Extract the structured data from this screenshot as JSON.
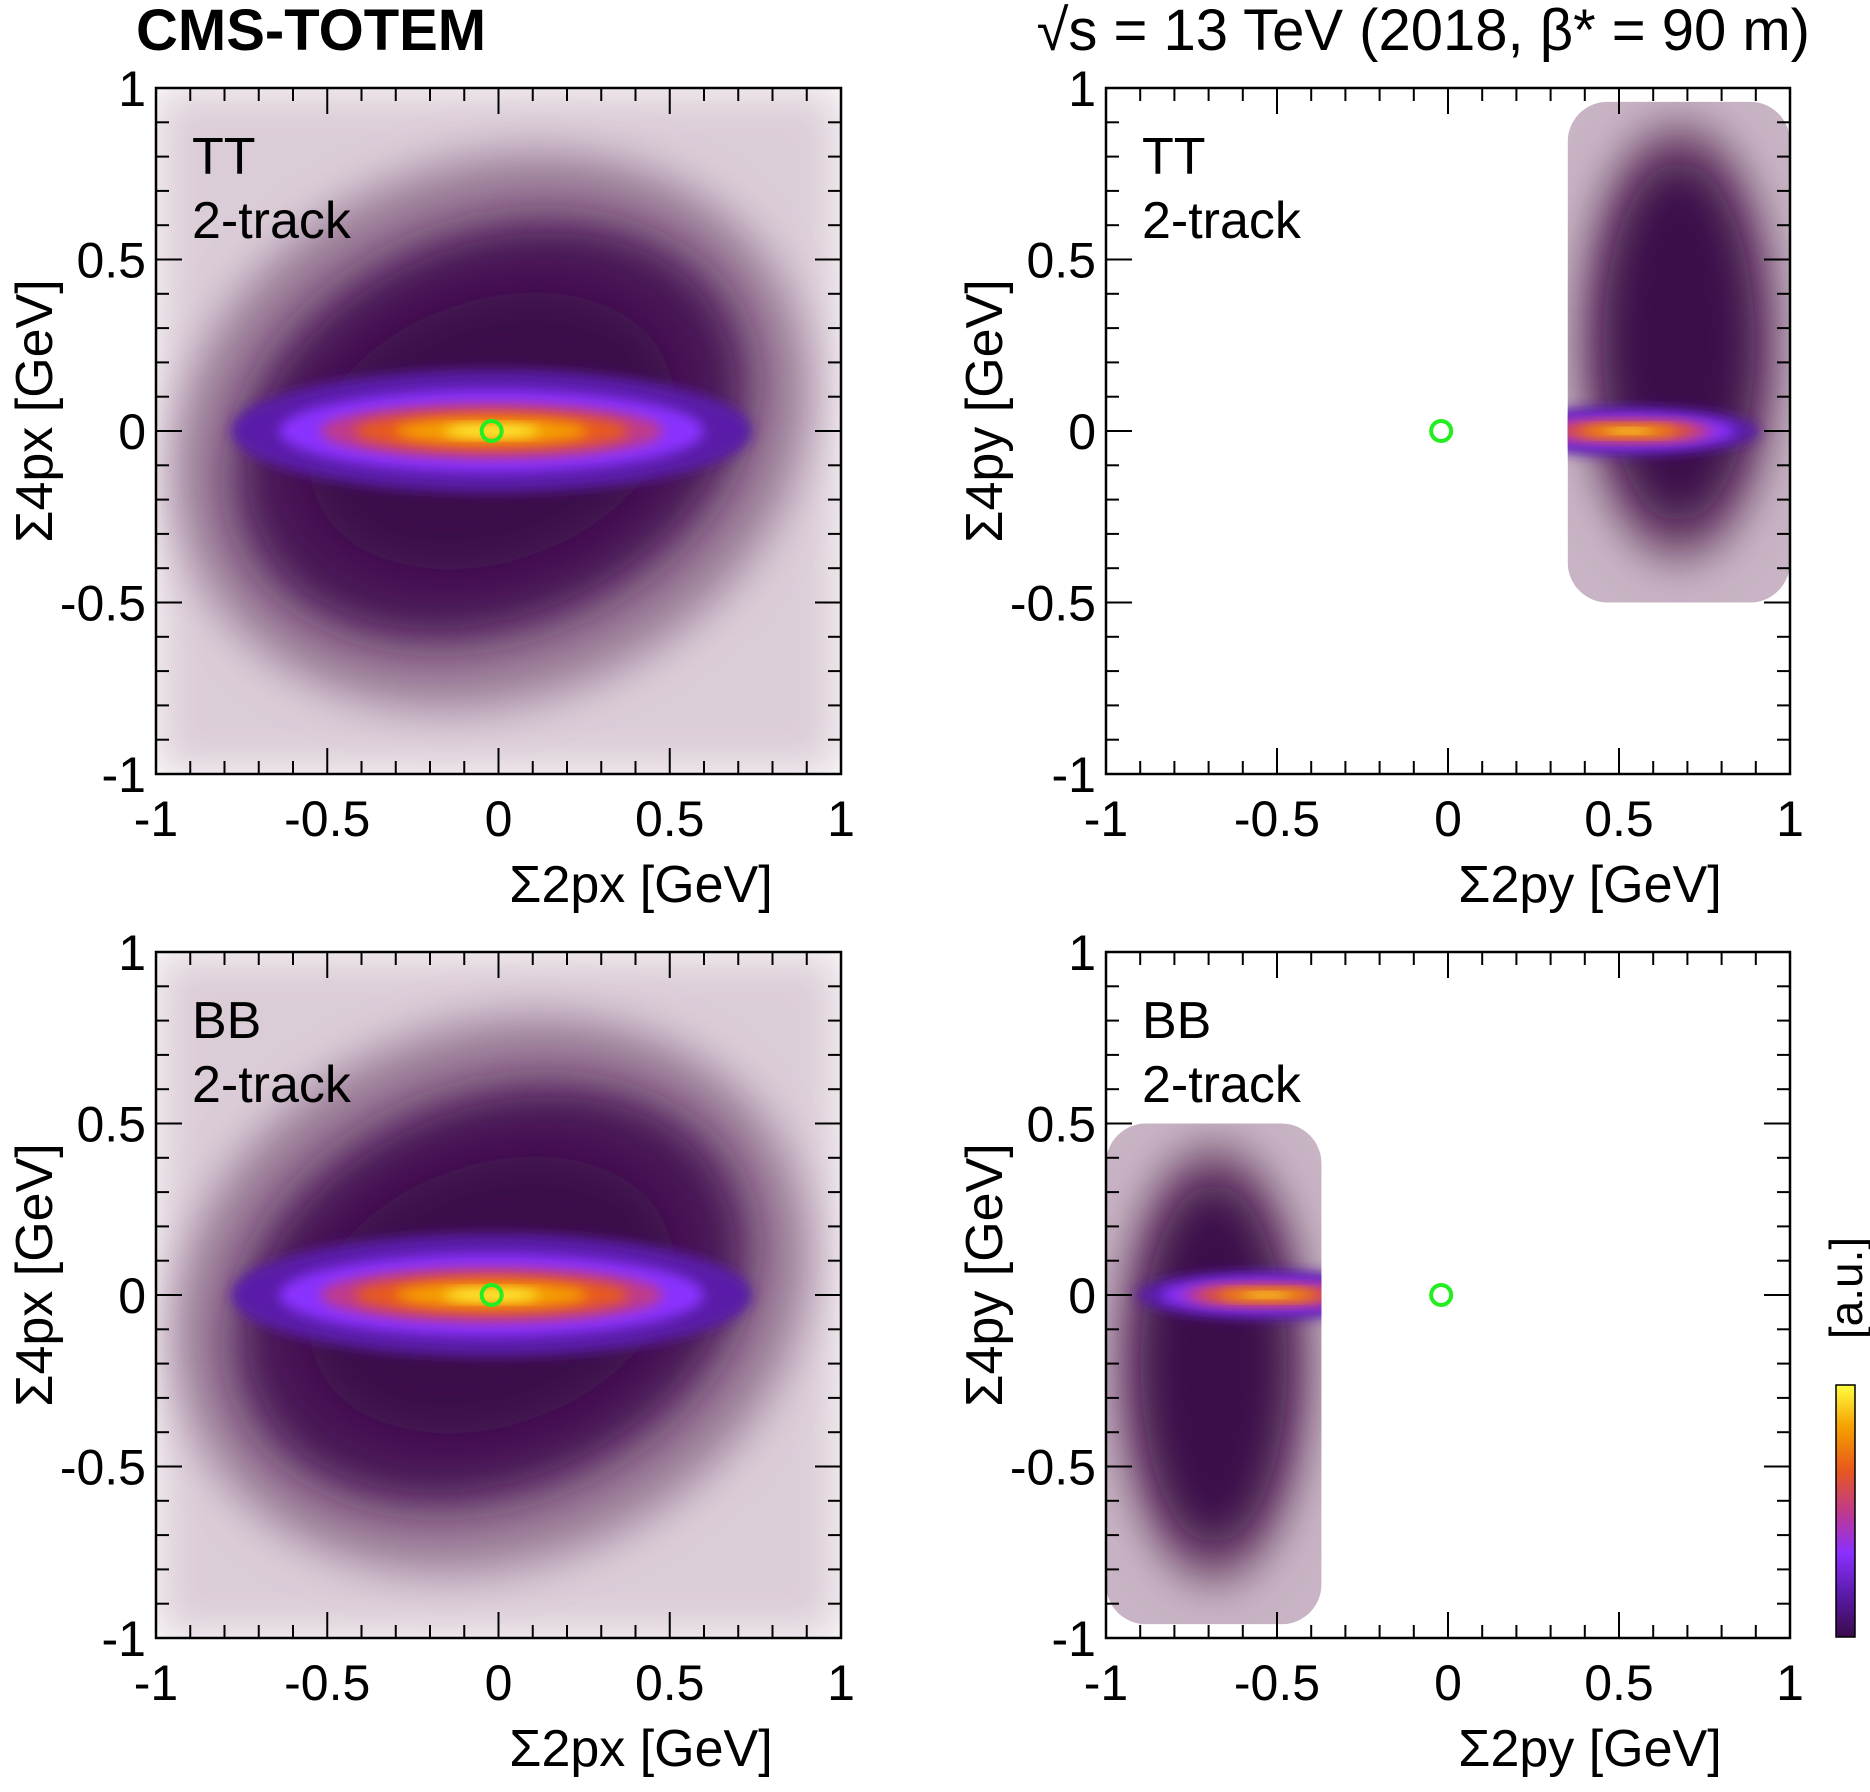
{
  "header": {
    "experiment": "CMS-TOTEM",
    "conditions": "√s = 13 TeV (2018, β* = 90 m)"
  },
  "colorbar": {
    "label": "[a.u.]",
    "stops": [
      "#3a0a4a",
      "#5a1aa8",
      "#8a30ff",
      "#c03a8a",
      "#e85a1a",
      "#f5a000",
      "#ffff40"
    ]
  },
  "marker_color": "#22ee22",
  "chart_data": [
    {
      "type": "heatmap",
      "panel": "top-left",
      "sample": "TT",
      "selection": "2-track",
      "xlabel": "Σ2px [GeV]",
      "ylabel": "Σ4px [GeV]",
      "xlim": [
        -1,
        1
      ],
      "ylim": [
        -1,
        1
      ],
      "xticks": [
        "-1",
        "-0.5",
        "0",
        "0.5",
        "1"
      ],
      "yticks": [
        "-1",
        "-0.5",
        "0",
        "0.5",
        "1"
      ],
      "peak": {
        "x": -0.02,
        "y": 0.0
      },
      "core_width": [
        0.4,
        0.05
      ],
      "support": "full",
      "expected_point": {
        "x": -0.02,
        "y": 0.0
      }
    },
    {
      "type": "heatmap",
      "panel": "top-right",
      "sample": "TT",
      "selection": "2-track",
      "xlabel": "Σ2py [GeV]",
      "ylabel": "Σ4py [GeV]",
      "xlim": [
        -1,
        1
      ],
      "ylim": [
        -1,
        1
      ],
      "xticks": [
        "-1",
        "-0.5",
        "0",
        "0.5",
        "1"
      ],
      "yticks": [
        "-1",
        "-0.5",
        "0",
        "0.5",
        "1"
      ],
      "peak": {
        "x": 0.53,
        "y": 0.0
      },
      "core_width": [
        0.2,
        0.02
      ],
      "support": {
        "xmin": 0.35,
        "xmax": 1.0,
        "ymin": -0.5,
        "ymax": 0.96
      },
      "expected_point": {
        "x": -0.02,
        "y": 0.0
      }
    },
    {
      "type": "heatmap",
      "panel": "bottom-left",
      "sample": "BB",
      "selection": "2-track",
      "xlabel": "Σ2px [GeV]",
      "ylabel": "Σ4px [GeV]",
      "xlim": [
        -1,
        1
      ],
      "ylim": [
        -1,
        1
      ],
      "xticks": [
        "-1",
        "-0.5",
        "0",
        "0.5",
        "1"
      ],
      "yticks": [
        "-1",
        "-0.5",
        "0",
        "0.5",
        "1"
      ],
      "peak": {
        "x": -0.02,
        "y": 0.0
      },
      "core_width": [
        0.4,
        0.05
      ],
      "support": "full",
      "expected_point": {
        "x": -0.02,
        "y": 0.0
      }
    },
    {
      "type": "heatmap",
      "panel": "bottom-right",
      "sample": "BB",
      "selection": "2-track",
      "xlabel": "Σ2py [GeV]",
      "ylabel": "Σ4py [GeV]",
      "xlim": [
        -1,
        1
      ],
      "ylim": [
        -1,
        1
      ],
      "xticks": [
        "-1",
        "-0.5",
        "0",
        "0.5",
        "1"
      ],
      "yticks": [
        "-1",
        "-0.5",
        "0",
        "0.5",
        "1"
      ],
      "peak": {
        "x": -0.53,
        "y": 0.0
      },
      "core_width": [
        0.2,
        0.02
      ],
      "support": {
        "xmin": -1.0,
        "xmax": -0.37,
        "ymin": -0.96,
        "ymax": 0.5
      },
      "expected_point": {
        "x": -0.02,
        "y": 0.0
      }
    }
  ]
}
